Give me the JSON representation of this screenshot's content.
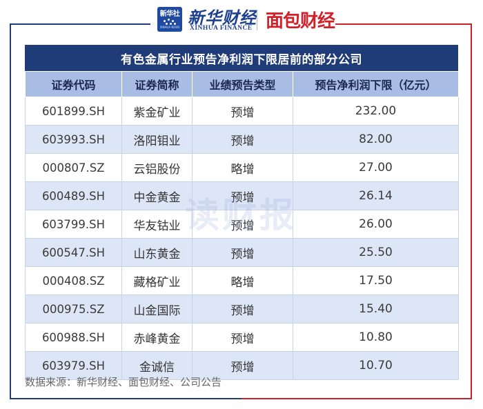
{
  "header": {
    "logo_mark_top": "新华社",
    "logo_mark_bottom": "XINHUA NEWS",
    "brand_cn": "新华财经",
    "brand_en": "XINHUA FINANCE",
    "partner_logo": "面包财经"
  },
  "table": {
    "title": "有色金属行业预告净利润下限居前的部分公司",
    "columns": [
      "证券代码",
      "证券简称",
      "业绩预告类型",
      "预告净利润下限（亿元）"
    ],
    "rows": [
      [
        "601899.SH",
        "紫金矿业",
        "预增",
        "232.00"
      ],
      [
        "603993.SH",
        "洛阳钼业",
        "预增",
        "82.00"
      ],
      [
        "000807.SZ",
        "云铝股份",
        "略增",
        "27.00"
      ],
      [
        "600489.SH",
        "中金黄金",
        "预增",
        "26.14"
      ],
      [
        "603799.SH",
        "华友钴业",
        "预增",
        "26.00"
      ],
      [
        "600547.SH",
        "山东黄金",
        "预增",
        "25.50"
      ],
      [
        "000408.SZ",
        "藏格矿业",
        "略增",
        "17.50"
      ],
      [
        "000975.SZ",
        "山金国际",
        "预增",
        "15.40"
      ],
      [
        "600988.SH",
        "赤峰黄金",
        "预增",
        "10.80"
      ],
      [
        "603979.SH",
        "金诚信",
        "预增",
        "10.70"
      ]
    ]
  },
  "watermark": "读财报",
  "source": "数据来源：新华财经、面包财经、公司公告",
  "colors": {
    "title_bar": "#1f3b78",
    "header_row": "#a9bde4",
    "stripe": "#dde6f7",
    "brand_red": "#d2202a"
  }
}
